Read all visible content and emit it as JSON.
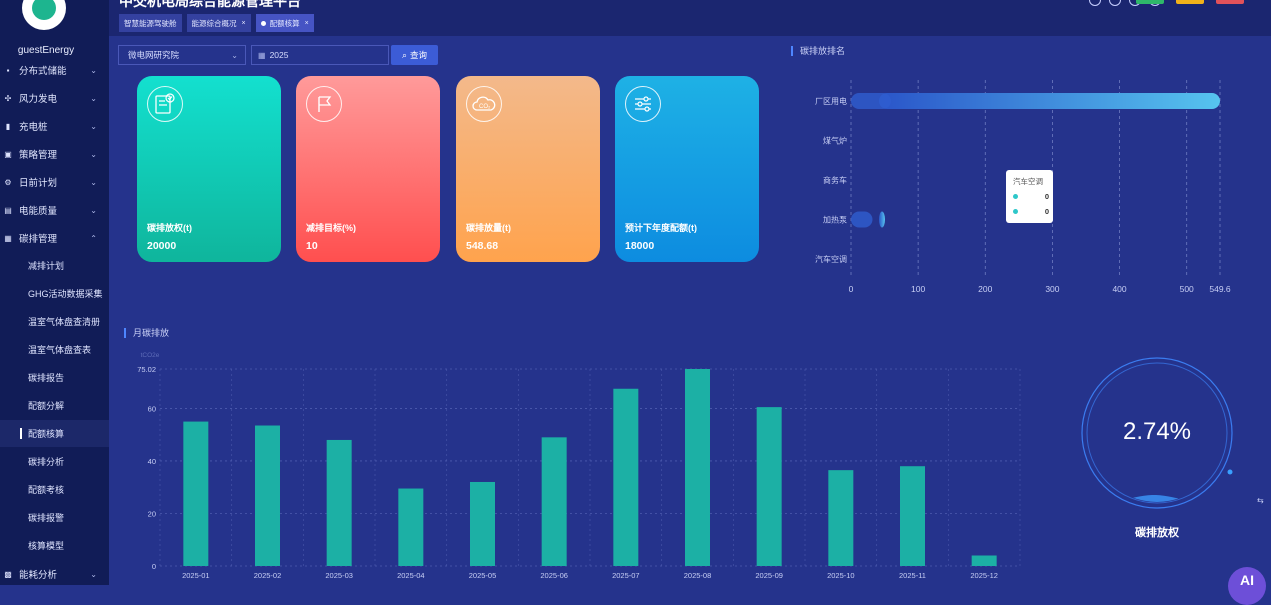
{
  "app": {
    "title": "中交机电局综合能源管理平台",
    "username": "guestEnergy"
  },
  "sidebar": {
    "items": [
      {
        "label": "分布式储能",
        "icon": "battery-icon"
      },
      {
        "label": "风力发电",
        "icon": "wind-icon"
      },
      {
        "label": "充电桩",
        "icon": "charger-icon"
      },
      {
        "label": "策略管理",
        "icon": "strategy-icon"
      },
      {
        "label": "日前计划",
        "icon": "gear-icon"
      },
      {
        "label": "电能质量",
        "icon": "chart-icon"
      },
      {
        "label": "碳排管理",
        "icon": "carbon-icon",
        "expanded": true
      }
    ],
    "subitems": [
      {
        "label": "减排计划"
      },
      {
        "label": "GHG活动数据采集"
      },
      {
        "label": "温室气体盘查清册"
      },
      {
        "label": "温室气体盘查表"
      },
      {
        "label": "碳排报告"
      },
      {
        "label": "配额分解"
      },
      {
        "label": "配额核算",
        "active": true
      },
      {
        "label": "碳排分析"
      },
      {
        "label": "配额考核"
      },
      {
        "label": "碳排报警"
      },
      {
        "label": "核算模型"
      }
    ],
    "bottom_item": {
      "label": "能耗分析",
      "icon": "analysis-icon"
    }
  },
  "tabs": [
    {
      "label": "智慧能源驾驶舱",
      "closable": false,
      "active": false
    },
    {
      "label": "能源综合概况",
      "closable": true,
      "active": false
    },
    {
      "label": "配额核算",
      "closable": true,
      "active": true
    }
  ],
  "filters": {
    "org": "微电网研究院",
    "year": "2025",
    "query_label": "查询"
  },
  "cards": [
    {
      "label": "碳排放权(t)",
      "value": "20000",
      "icon": "certificate-icon",
      "color_top": "#13e0cf",
      "color_bottom": "#0fb59c"
    },
    {
      "label": "减排目标(%)",
      "value": "10",
      "icon": "flag-icon",
      "color_top": "#ff9a9a",
      "color_bottom": "#ff4f4f"
    },
    {
      "label": "碳排放量(t)",
      "value": "548.68",
      "icon": "co2-cloud-icon",
      "color_top": "#f3b98b",
      "color_bottom": "#ffa34d"
    },
    {
      "label": "预计下年度配额(t)",
      "value": "18000",
      "icon": "sliders-icon",
      "color_top": "#1eb1e5",
      "color_bottom": "#0d8ce0"
    }
  ],
  "ranking": {
    "title": "碳排放排名",
    "chart_data": {
      "type": "bar",
      "orientation": "horizontal",
      "categories": [
        "厂区用电",
        "煤气炉",
        "商务车",
        "加热泵",
        "汽车空调"
      ],
      "values": [
        549.6,
        0,
        0,
        32,
        0
      ],
      "xlim": [
        0,
        549.6
      ],
      "xticks": [
        "0",
        "100",
        "200",
        "300",
        "400",
        "500",
        "549.6"
      ],
      "grid": "vertical dashed",
      "bar_color": "#56c4ef"
    },
    "tooltip": {
      "title": "汽车空调",
      "rows": [
        {
          "value": "0"
        },
        {
          "value": "0"
        }
      ]
    }
  },
  "monthly": {
    "title": "月碳排放",
    "chart_data": {
      "type": "bar",
      "categories": [
        "2025-01",
        "2025-02",
        "2025-03",
        "2025-04",
        "2025-05",
        "2025-06",
        "2025-07",
        "2025-08",
        "2025-09",
        "2025-10",
        "2025-11",
        "2025-12"
      ],
      "values": [
        55,
        53.5,
        48,
        29.5,
        32,
        49,
        67.5,
        75.02,
        60.5,
        36.5,
        38,
        4
      ],
      "ylim": [
        0,
        75.02
      ],
      "yticks": [
        "0",
        "20",
        "40",
        "60",
        "75.02"
      ],
      "ylabel": "tCO2e",
      "grid": "dashed",
      "bar_color": "#1cb0a5"
    }
  },
  "gauge": {
    "value": "2.74%",
    "label": "碳排放权",
    "fraction": 0.0274
  },
  "float_button": {
    "label": "AI"
  }
}
